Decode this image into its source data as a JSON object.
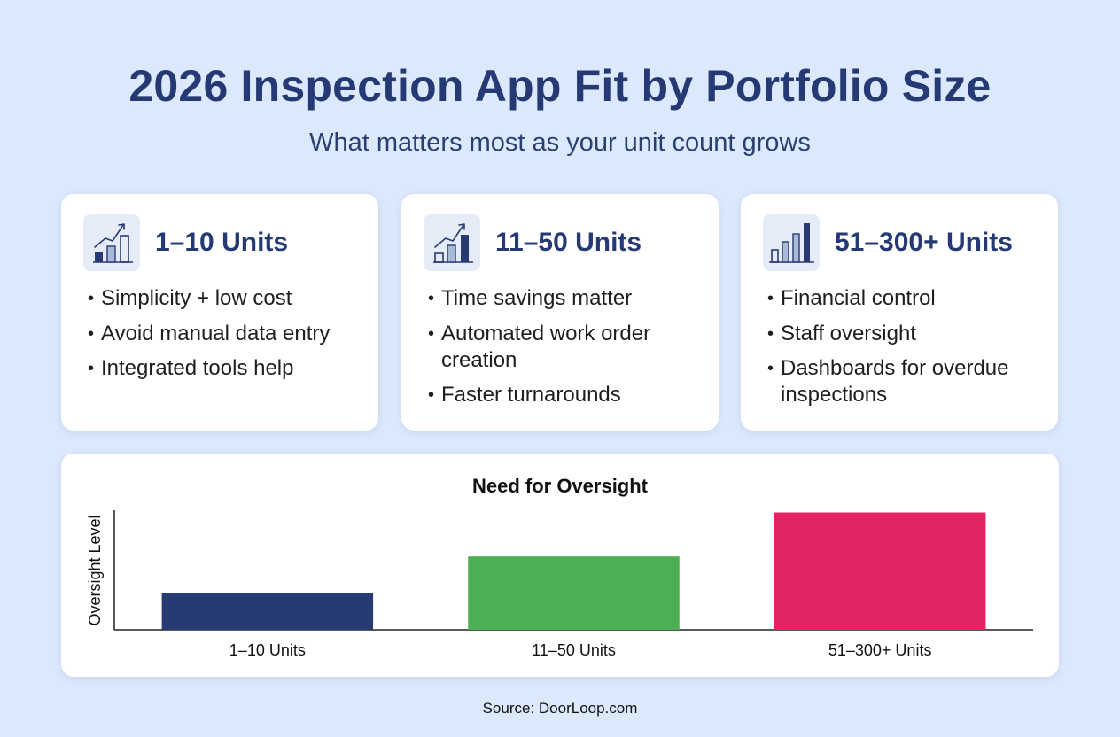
{
  "header": {
    "title": "2026 Inspection App Fit by Portfolio Size",
    "subtitle": "What matters most as your unit count grows"
  },
  "cards": [
    {
      "title": "1–10 Units",
      "icon": "growth-chart-icon",
      "bullets": [
        "Simplicity + low cost",
        "Avoid manual data entry",
        "Integrated tools help"
      ]
    },
    {
      "title": "11–50 Units",
      "icon": "growth-chart-icon",
      "bullets": [
        "Time savings matter",
        "Automated work order creation",
        "Faster turnarounds"
      ]
    },
    {
      "title": "51–300+ Units",
      "icon": "bar-chart-icon",
      "bullets": [
        "Financial control",
        "Staff oversight",
        "Dashboards for overdue inspections"
      ]
    }
  ],
  "chart_data": {
    "type": "bar",
    "title": "Need for Oversight",
    "xlabel": "",
    "ylabel": "Oversight Level",
    "categories": [
      "1–10 Units",
      "11–50 Units",
      "51–300+ Units"
    ],
    "values": [
      30,
      60,
      96
    ],
    "ylim": [
      0,
      100
    ],
    "colors": [
      "#283a72",
      "#4caf55",
      "#e32462"
    ],
    "grid": false,
    "legend": "none"
  },
  "colors": {
    "background": "#dce8fb",
    "title": "#253a74",
    "icon_dark": "#283a72",
    "icon_light": "#a9b9d6"
  },
  "footer": {
    "source": "Source: DoorLoop.com"
  }
}
